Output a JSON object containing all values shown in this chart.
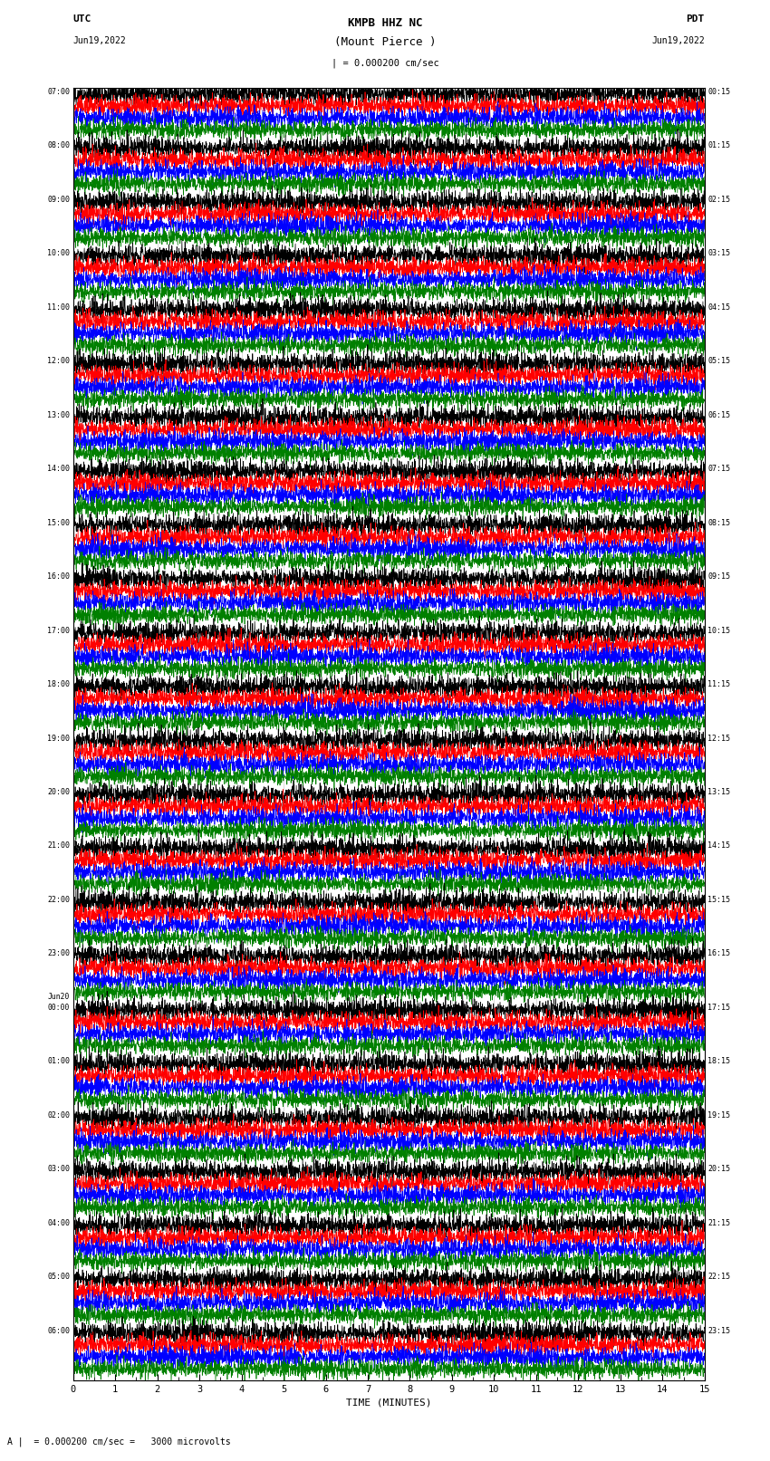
{
  "title_line1": "KMPB HHZ NC",
  "title_line2": "(Mount Pierce )",
  "title_scale": "| = 0.000200 cm/sec",
  "label_utc": "UTC",
  "label_utc_date": "Jun19,2022",
  "label_pdt": "PDT",
  "label_pdt_date": "Jun19,2022",
  "xlabel": "TIME (MINUTES)",
  "footer": "A |  = 0.000200 cm/sec =   3000 microvolts",
  "left_times": [
    "07:00",
    "08:00",
    "09:00",
    "10:00",
    "11:00",
    "12:00",
    "13:00",
    "14:00",
    "15:00",
    "16:00",
    "17:00",
    "18:00",
    "19:00",
    "20:00",
    "21:00",
    "22:00",
    "23:00",
    "Jun20\n00:00",
    "01:00",
    "02:00",
    "03:00",
    "04:00",
    "05:00",
    "06:00"
  ],
  "right_times": [
    "00:15",
    "01:15",
    "02:15",
    "03:15",
    "04:15",
    "05:15",
    "06:15",
    "07:15",
    "08:15",
    "09:15",
    "10:15",
    "11:15",
    "12:15",
    "13:15",
    "14:15",
    "15:15",
    "16:15",
    "17:15",
    "18:15",
    "19:15",
    "20:15",
    "21:15",
    "22:15",
    "23:15"
  ],
  "colors": [
    "black",
    "red",
    "blue",
    "green"
  ],
  "n_rows": 24,
  "traces_per_row": 4,
  "x_min": 0,
  "x_max": 15,
  "background": "white",
  "fig_width": 8.5,
  "fig_height": 16.13,
  "dpi": 100
}
